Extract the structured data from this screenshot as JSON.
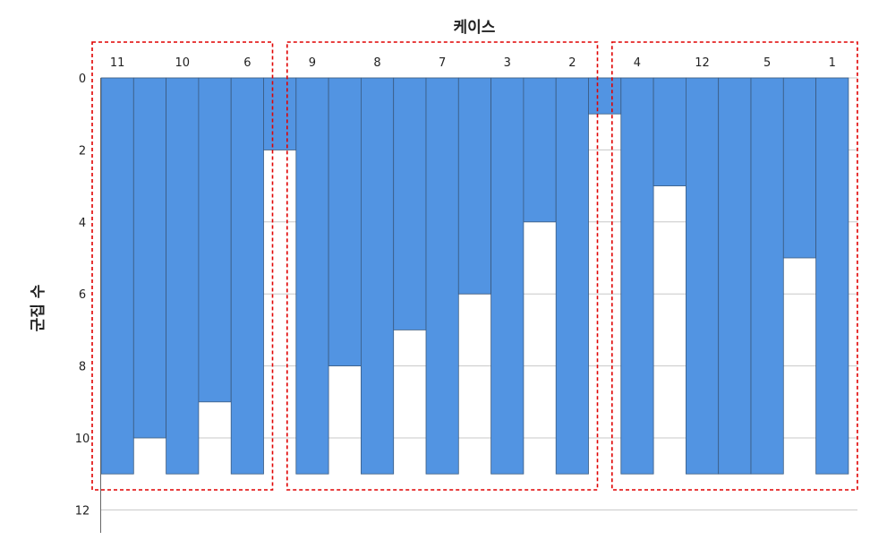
{
  "chart_data": {
    "type": "bar",
    "title": "케이스",
    "xlabel": "",
    "ylabel": "군집 수",
    "ylim": [
      0,
      12
    ],
    "y_ticks": [
      "0",
      "2",
      "4",
      "6",
      "8",
      "10",
      "12"
    ],
    "grid": true,
    "case_labels": [
      "11",
      "10",
      "6",
      "9",
      "8",
      "7",
      "3",
      "2",
      "4",
      "12",
      "5",
      "1"
    ],
    "columns": [
      {
        "type": "case",
        "case": "11",
        "value": 11
      },
      {
        "type": "join",
        "value": 10
      },
      {
        "type": "case",
        "case": "10",
        "value": 11
      },
      {
        "type": "join",
        "value": 9
      },
      {
        "type": "case",
        "case": "6",
        "value": 11
      },
      {
        "type": "join",
        "value": 2
      },
      {
        "type": "case",
        "case": "9",
        "value": 11
      },
      {
        "type": "join",
        "value": 8
      },
      {
        "type": "case",
        "case": "8",
        "value": 11
      },
      {
        "type": "join",
        "value": 7
      },
      {
        "type": "case",
        "case": "7",
        "value": 11
      },
      {
        "type": "join",
        "value": 6
      },
      {
        "type": "case",
        "case": "3",
        "value": 11
      },
      {
        "type": "join",
        "value": 4
      },
      {
        "type": "case",
        "case": "2",
        "value": 11
      },
      {
        "type": "join",
        "value": 1
      },
      {
        "type": "case",
        "case": "4",
        "value": 11
      },
      {
        "type": "join",
        "value": 3
      },
      {
        "type": "case",
        "case": "12",
        "value": 11
      },
      {
        "type": "join",
        "value": 11
      },
      {
        "type": "case",
        "case": "5",
        "value": 11
      },
      {
        "type": "join",
        "value": 5
      },
      {
        "type": "case",
        "case": "1",
        "value": 11
      }
    ],
    "groups": [
      {
        "cases": [
          "11",
          "10",
          "6"
        ]
      },
      {
        "cases": [
          "9",
          "8",
          "7",
          "3",
          "2"
        ]
      },
      {
        "cases": [
          "4",
          "12",
          "5",
          "1"
        ]
      }
    ],
    "colors": {
      "bar": "#5294e2",
      "bar_edge": "#3a5a80",
      "grid": "#c8c8c8",
      "group_box": "#e00000"
    }
  }
}
